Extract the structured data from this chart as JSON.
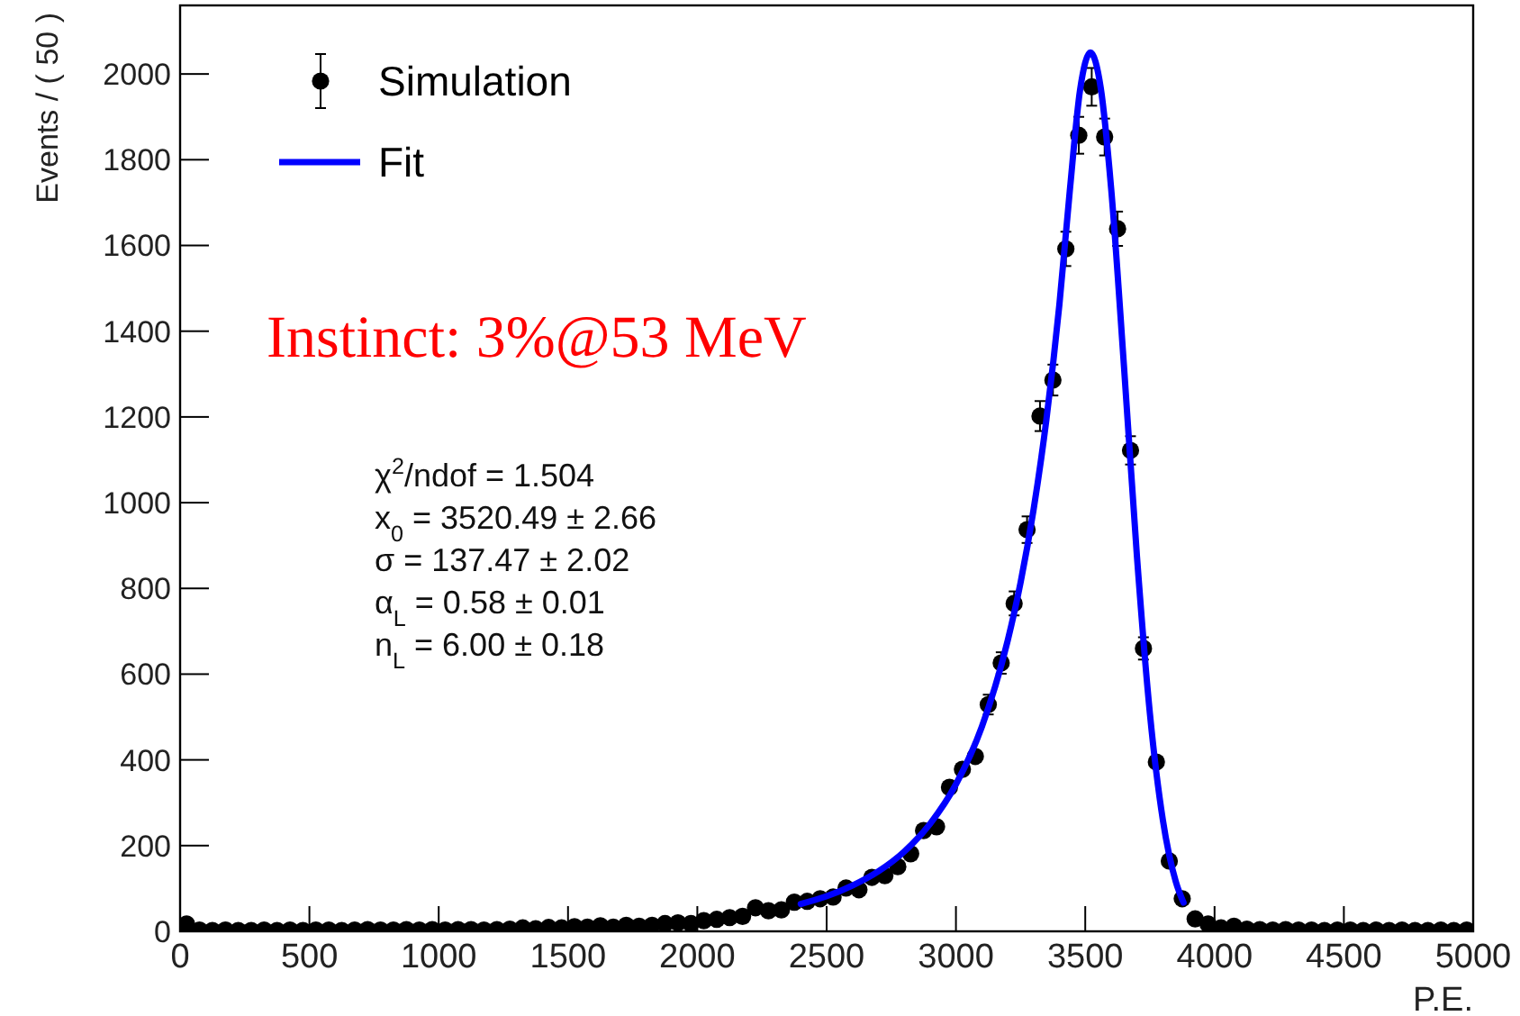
{
  "chart_data": {
    "type": "scatter",
    "xlabel": "P.E.",
    "ylabel": "Events / ( 50 )",
    "xlim": [
      0,
      5000
    ],
    "ylim": [
      0,
      2160
    ],
    "xticks": [
      0,
      500,
      1000,
      1500,
      2000,
      2500,
      3000,
      3500,
      4000,
      4500,
      5000
    ],
    "yticks": [
      0,
      200,
      400,
      600,
      800,
      1000,
      1200,
      1400,
      1600,
      1800,
      2000
    ],
    "grid": false,
    "legend": "top left",
    "series": [
      {
        "name": "Simulation",
        "marker": "circle",
        "color": "#000000",
        "x": [
          25,
          75,
          125,
          175,
          225,
          275,
          325,
          375,
          425,
          475,
          525,
          575,
          625,
          675,
          725,
          775,
          825,
          875,
          925,
          975,
          1025,
          1075,
          1125,
          1175,
          1225,
          1275,
          1325,
          1375,
          1425,
          1475,
          1525,
          1575,
          1625,
          1675,
          1725,
          1775,
          1825,
          1875,
          1925,
          1975,
          2025,
          2075,
          2125,
          2175,
          2225,
          2275,
          2325,
          2375,
          2425,
          2475,
          2525,
          2575,
          2625,
          2675,
          2725,
          2775,
          2825,
          2875,
          2925,
          2975,
          3025,
          3075,
          3125,
          3175,
          3225,
          3275,
          3325,
          3375,
          3425,
          3475,
          3525,
          3575,
          3625,
          3675,
          3725,
          3775,
          3825,
          3875,
          3925,
          3975,
          4025,
          4075,
          4125,
          4175,
          4225,
          4275,
          4325,
          4375,
          4425,
          4475,
          4525,
          4575,
          4625,
          4675,
          4725,
          4775,
          4825,
          4875,
          4925,
          4975
        ],
        "values": [
          17,
          3,
          2,
          3,
          2,
          2,
          3,
          2,
          3,
          2,
          3,
          3,
          2,
          3,
          4,
          3,
          3,
          4,
          3,
          4,
          3,
          4,
          4,
          3,
          4,
          5,
          8,
          6,
          9,
          8,
          11,
          10,
          13,
          10,
          14,
          12,
          14,
          18,
          20,
          18,
          25,
          28,
          32,
          35,
          55,
          48,
          50,
          68,
          70,
          76,
          80,
          101,
          97,
          126,
          130,
          151,
          181,
          235,
          244,
          336,
          378,
          408,
          529,
          626,
          765,
          937,
          1202,
          1286,
          1592,
          1857,
          1970,
          1853,
          1639,
          1122,
          660,
          395,
          164,
          76,
          29,
          17,
          8,
          12,
          5,
          4,
          3,
          4,
          3,
          3,
          2,
          3,
          3,
          2,
          3,
          2,
          3,
          2,
          2,
          3,
          2,
          3
        ],
        "errors": [
          null,
          null,
          null,
          null,
          null,
          null,
          null,
          null,
          null,
          null,
          null,
          null,
          null,
          null,
          null,
          null,
          null,
          null,
          null,
          null,
          null,
          null,
          null,
          null,
          null,
          null,
          null,
          null,
          null,
          null,
          null,
          null,
          null,
          null,
          null,
          null,
          null,
          null,
          null,
          null,
          null,
          null,
          null,
          null,
          null,
          null,
          null,
          null,
          null,
          null,
          null,
          null,
          null,
          null,
          null,
          null,
          null,
          null,
          null,
          null,
          null,
          null,
          23,
          25,
          28,
          31,
          35,
          36,
          40,
          43,
          44,
          43,
          40,
          33,
          26,
          null,
          null,
          null,
          null,
          null,
          null,
          null,
          null,
          null,
          null,
          null,
          null,
          null,
          null,
          null,
          null,
          null,
          null,
          null,
          null,
          null,
          null,
          null,
          null,
          null
        ]
      },
      {
        "name": "Fit",
        "type": "line",
        "color": "#0000ff",
        "line_style": "solid",
        "x": [
          2400,
          2500,
          2600,
          2700,
          2800,
          2900,
          3000,
          3100,
          3200,
          3250,
          3300,
          3350,
          3400,
          3440,
          3480,
          3520,
          3560,
          3600,
          3650,
          3700,
          3750,
          3800,
          3850,
          3880
        ],
        "values": [
          64,
          82,
          107,
          140,
          186,
          251,
          343,
          477,
          678,
          814,
          983,
          1195,
          1462,
          1726,
          1963,
          2050,
          1967,
          1734,
          1316,
          874,
          508,
          260,
          116,
          67
        ]
      }
    ],
    "annotations": [
      "Instinct: 3%@53 MeV",
      "χ$^{2}$/ndof = 1.504",
      "x$_{0}$ = 3520.49  ± 2.66",
      "σ = 137.47  ± 2.02",
      "α$_{L}$ = 0.58  ± 0.01",
      "n$_{L}$ = 6.00  ± 0.18"
    ]
  }
}
